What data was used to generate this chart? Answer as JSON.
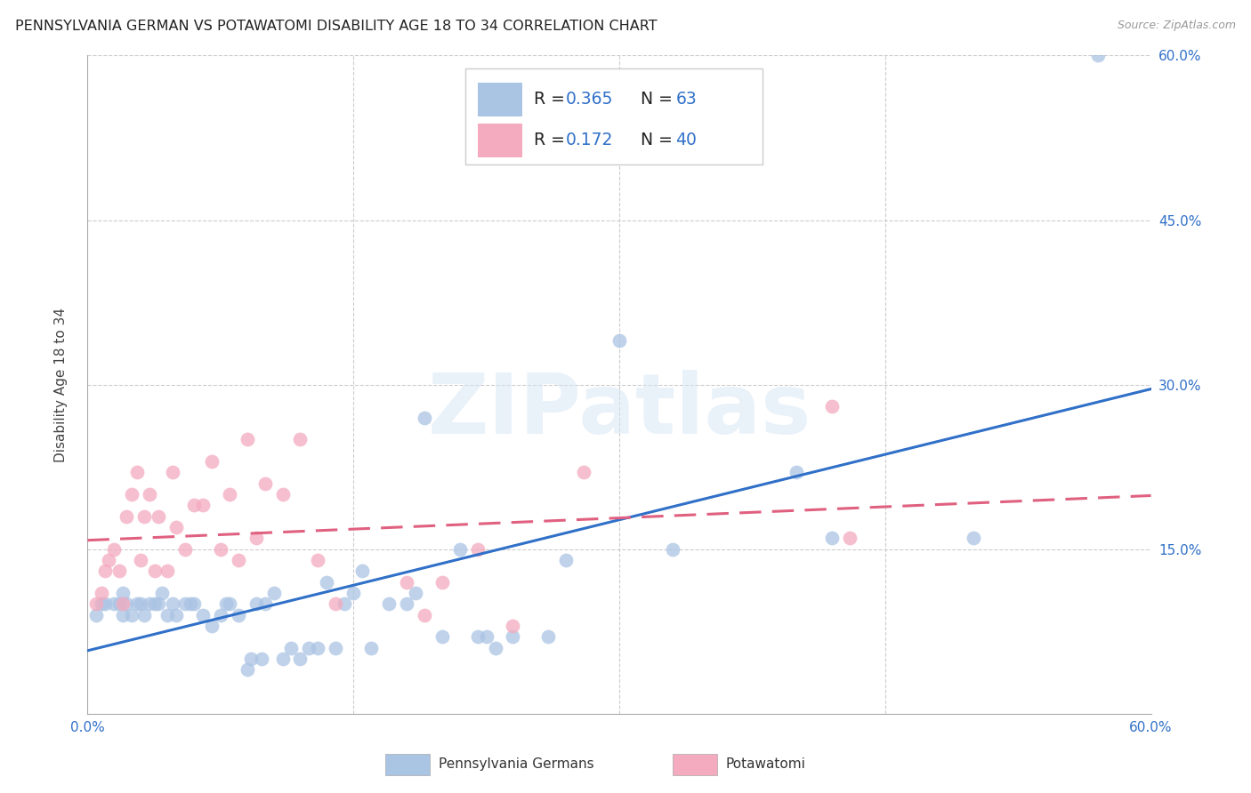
{
  "title": "PENNSYLVANIA GERMAN VS POTAWATOMI DISABILITY AGE 18 TO 34 CORRELATION CHART",
  "source": "Source: ZipAtlas.com",
  "ylabel": "Disability Age 18 to 34",
  "xlim": [
    0.0,
    0.6
  ],
  "ylim": [
    0.0,
    0.6
  ],
  "legend_r_blue": "0.365",
  "legend_n_blue": "63",
  "legend_r_pink": "0.172",
  "legend_n_pink": "40",
  "blue_scatter_color": "#aac4e4",
  "pink_scatter_color": "#f4aabf",
  "blue_line_color": "#3070c8",
  "pink_line_color": "#e06080",
  "text_dark": "#222222",
  "text_blue": "#3070c8",
  "text_pink": "#e06080",
  "grid_color": "#cccccc",
  "watermark": "ZIPatlas",
  "blue_x": [
    0.005,
    0.008,
    0.01,
    0.015,
    0.018,
    0.02,
    0.02,
    0.022,
    0.025,
    0.028,
    0.03,
    0.032,
    0.035,
    0.038,
    0.04,
    0.042,
    0.045,
    0.048,
    0.05,
    0.055,
    0.058,
    0.06,
    0.065,
    0.07,
    0.075,
    0.078,
    0.08,
    0.085,
    0.09,
    0.092,
    0.095,
    0.098,
    0.1,
    0.105,
    0.11,
    0.115,
    0.12,
    0.125,
    0.13,
    0.135,
    0.14,
    0.145,
    0.15,
    0.155,
    0.16,
    0.17,
    0.18,
    0.185,
    0.19,
    0.2,
    0.21,
    0.22,
    0.225,
    0.23,
    0.24,
    0.26,
    0.27,
    0.3,
    0.33,
    0.4,
    0.42,
    0.5,
    0.57
  ],
  "blue_y": [
    0.09,
    0.1,
    0.1,
    0.1,
    0.1,
    0.09,
    0.11,
    0.1,
    0.09,
    0.1,
    0.1,
    0.09,
    0.1,
    0.1,
    0.1,
    0.11,
    0.09,
    0.1,
    0.09,
    0.1,
    0.1,
    0.1,
    0.09,
    0.08,
    0.09,
    0.1,
    0.1,
    0.09,
    0.04,
    0.05,
    0.1,
    0.05,
    0.1,
    0.11,
    0.05,
    0.06,
    0.05,
    0.06,
    0.06,
    0.12,
    0.06,
    0.1,
    0.11,
    0.13,
    0.06,
    0.1,
    0.1,
    0.11,
    0.27,
    0.07,
    0.15,
    0.07,
    0.07,
    0.06,
    0.07,
    0.07,
    0.14,
    0.34,
    0.15,
    0.22,
    0.16,
    0.16,
    0.6
  ],
  "pink_x": [
    0.005,
    0.008,
    0.01,
    0.012,
    0.015,
    0.018,
    0.02,
    0.022,
    0.025,
    0.028,
    0.03,
    0.032,
    0.035,
    0.038,
    0.04,
    0.045,
    0.048,
    0.05,
    0.055,
    0.06,
    0.065,
    0.07,
    0.075,
    0.08,
    0.085,
    0.09,
    0.095,
    0.1,
    0.11,
    0.12,
    0.13,
    0.14,
    0.18,
    0.19,
    0.2,
    0.22,
    0.24,
    0.28,
    0.42,
    0.43
  ],
  "pink_y": [
    0.1,
    0.11,
    0.13,
    0.14,
    0.15,
    0.13,
    0.1,
    0.18,
    0.2,
    0.22,
    0.14,
    0.18,
    0.2,
    0.13,
    0.18,
    0.13,
    0.22,
    0.17,
    0.15,
    0.19,
    0.19,
    0.23,
    0.15,
    0.2,
    0.14,
    0.25,
    0.16,
    0.21,
    0.2,
    0.25,
    0.14,
    0.1,
    0.12,
    0.09,
    0.12,
    0.15,
    0.08,
    0.22,
    0.28,
    0.16
  ]
}
